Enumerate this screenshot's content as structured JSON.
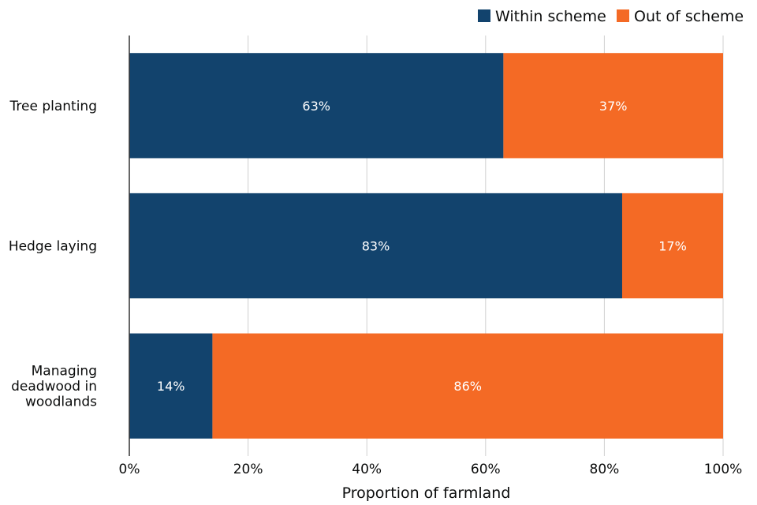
{
  "chart_data": {
    "type": "bar",
    "orientation": "horizontal",
    "stacked": true,
    "categories": [
      "Tree planting",
      "Hedge laying",
      "Managing deadwood in woodlands"
    ],
    "category_lines": [
      [
        "Tree planting"
      ],
      [
        "Hedge laying"
      ],
      [
        "Managing",
        "deadwood in",
        "woodlands"
      ]
    ],
    "series": [
      {
        "name": "Within scheme",
        "values": [
          63,
          83,
          14
        ],
        "labels": [
          "63%",
          "83%",
          "14%"
        ],
        "color": "#12436d"
      },
      {
        "name": "Out of scheme",
        "values": [
          37,
          17,
          86
        ],
        "labels": [
          "37%",
          "17%",
          "86%"
        ],
        "color": "#f46a25"
      }
    ],
    "xlabel": "Proportion of farmland",
    "ylabel": "",
    "xlim": [
      0,
      100
    ],
    "xticks": [
      0,
      20,
      40,
      60,
      80,
      100
    ],
    "xtick_labels": [
      "0%",
      "20%",
      "40%",
      "60%",
      "80%",
      "100%"
    ],
    "grid": "vertical",
    "legend": "top-right"
  }
}
